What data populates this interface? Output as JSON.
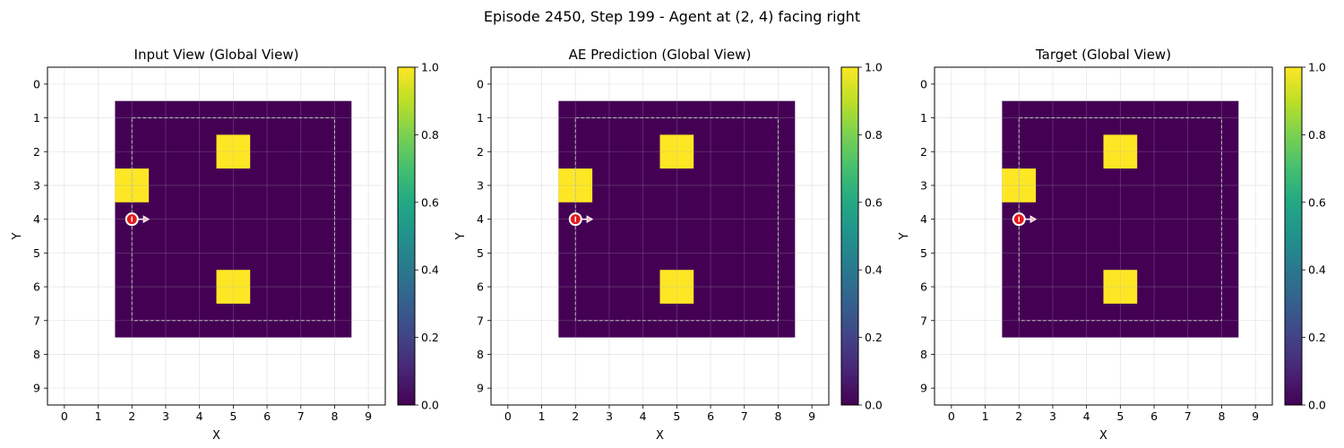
{
  "figure": {
    "title": "Episode 2450, Step 199 - Agent at (2, 4) facing right"
  },
  "colors": {
    "low": "#440154",
    "high": "#fde725",
    "agent": "#e41a1c",
    "inner_border": "#bbbbbb"
  },
  "chart_data": [
    {
      "type": "heatmap",
      "title": "Input View (Global View)",
      "xlabel": "X",
      "ylabel": "Y",
      "xticks": [
        0,
        1,
        2,
        3,
        4,
        5,
        6,
        7,
        8,
        9
      ],
      "yticks": [
        0,
        1,
        2,
        3,
        4,
        5,
        6,
        7,
        8,
        9
      ],
      "xlim": [
        -0.5,
        9.5
      ],
      "ylim": [
        9.5,
        -0.5
      ],
      "grid": true,
      "colorbar": {
        "min": 0.0,
        "max": 1.0,
        "ticks": [
          "0.0",
          "0.2",
          "0.4",
          "0.6",
          "0.8",
          "1.0"
        ],
        "colormap": "viridis"
      },
      "grid_extent": {
        "x": [
          2,
          8
        ],
        "y": [
          1,
          7
        ]
      },
      "cells": [
        {
          "x": 2,
          "y": 3,
          "value": 1.0
        },
        {
          "x": 5,
          "y": 2,
          "value": 1.0
        },
        {
          "x": 5,
          "y": 6,
          "value": 1.0
        }
      ],
      "background_value": 0.0,
      "inner_boundary": {
        "x": [
          2,
          8
        ],
        "y": [
          1,
          7
        ]
      },
      "agent": {
        "x": 2,
        "y": 4,
        "direction": "right"
      }
    },
    {
      "type": "heatmap",
      "title": "AE Prediction (Global View)",
      "xlabel": "X",
      "ylabel": "Y",
      "xticks": [
        0,
        1,
        2,
        3,
        4,
        5,
        6,
        7,
        8,
        9
      ],
      "yticks": [
        0,
        1,
        2,
        3,
        4,
        5,
        6,
        7,
        8,
        9
      ],
      "xlim": [
        -0.5,
        9.5
      ],
      "ylim": [
        9.5,
        -0.5
      ],
      "grid": true,
      "colorbar": {
        "min": 0.0,
        "max": 1.0,
        "ticks": [
          "0.0",
          "0.2",
          "0.4",
          "0.6",
          "0.8",
          "1.0"
        ],
        "colormap": "viridis"
      },
      "grid_extent": {
        "x": [
          2,
          8
        ],
        "y": [
          1,
          7
        ]
      },
      "cells": [
        {
          "x": 2,
          "y": 3,
          "value": 1.0
        },
        {
          "x": 5,
          "y": 2,
          "value": 1.0
        },
        {
          "x": 5,
          "y": 6,
          "value": 1.0
        }
      ],
      "background_value": 0.0,
      "inner_boundary": {
        "x": [
          2,
          8
        ],
        "y": [
          1,
          7
        ]
      },
      "agent": {
        "x": 2,
        "y": 4,
        "direction": "right"
      }
    },
    {
      "type": "heatmap",
      "title": "Target (Global View)",
      "xlabel": "X",
      "ylabel": "Y",
      "xticks": [
        0,
        1,
        2,
        3,
        4,
        5,
        6,
        7,
        8,
        9
      ],
      "yticks": [
        0,
        1,
        2,
        3,
        4,
        5,
        6,
        7,
        8,
        9
      ],
      "xlim": [
        -0.5,
        9.5
      ],
      "ylim": [
        9.5,
        -0.5
      ],
      "grid": true,
      "colorbar": {
        "min": 0.0,
        "max": 1.0,
        "ticks": [
          "0.0",
          "0.2",
          "0.4",
          "0.6",
          "0.8",
          "1.0"
        ],
        "colormap": "viridis"
      },
      "grid_extent": {
        "x": [
          2,
          8
        ],
        "y": [
          1,
          7
        ]
      },
      "cells": [
        {
          "x": 2,
          "y": 3,
          "value": 1.0
        },
        {
          "x": 5,
          "y": 2,
          "value": 1.0
        },
        {
          "x": 5,
          "y": 6,
          "value": 1.0
        }
      ],
      "background_value": 0.0,
      "inner_boundary": {
        "x": [
          2,
          8
        ],
        "y": [
          1,
          7
        ]
      },
      "agent": {
        "x": 2,
        "y": 4,
        "direction": "right"
      }
    }
  ]
}
